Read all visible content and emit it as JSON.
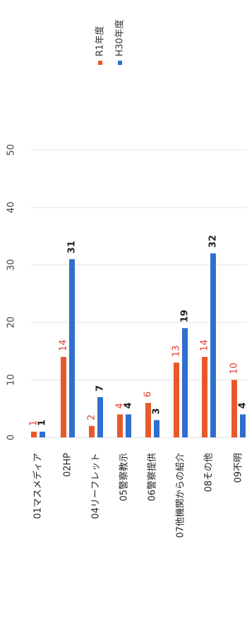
{
  "chart_data": {
    "type": "bar",
    "orientation": "vertical, rendered rotated 90° clockwise",
    "categories": [
      "01マスメディア",
      "02HP",
      "04リーフレット",
      "05警察教示",
      "06警察提供",
      "07他機関からの紹介",
      "08その他",
      "09不明"
    ],
    "series": [
      {
        "name": "R1年度",
        "color": "#e8582a",
        "label_color": "#e03a2e",
        "values": [
          1,
          14,
          2,
          4,
          6,
          13,
          14,
          10
        ]
      },
      {
        "name": "H30年度",
        "color": "#2f6fcf",
        "label_color": "#222222",
        "values": [
          1,
          31,
          7,
          4,
          3,
          19,
          32,
          4
        ]
      }
    ],
    "value_axis": {
      "min": 0,
      "max": 50,
      "ticks": [
        0,
        10,
        20,
        30,
        40,
        50
      ]
    },
    "grid": true,
    "legend_position": "top-right",
    "data_labels": true
  }
}
